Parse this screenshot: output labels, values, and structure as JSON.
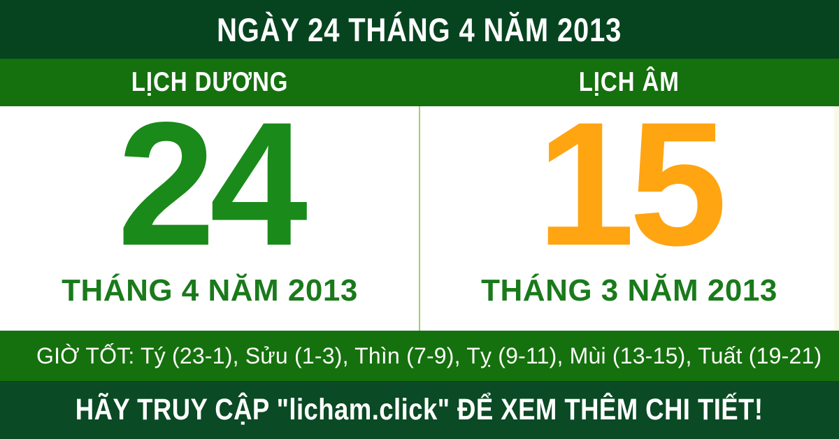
{
  "colors": {
    "header_bg": "#06441f",
    "bar_bg": "#15700e",
    "footer_bg": "#0a4a24",
    "solar_number": "#1a8a1a",
    "lunar_number": "#ffa512",
    "month_label": "#1a7a1b",
    "divider": "#a4cf62"
  },
  "header": {
    "title": "NGÀY 24 THÁNG 4 NĂM 2013"
  },
  "calendar": {
    "solar": {
      "label": "LỊCH DƯƠNG",
      "day": "24",
      "month_year": "THÁNG 4 NĂM 2013"
    },
    "lunar": {
      "label": "LỊCH ÂM",
      "day": "15",
      "month_year": "THÁNG 3 NĂM 2013"
    }
  },
  "good_hours": {
    "text": "GIỜ TỐT: Tý (23-1), Sửu (1-3), Thìn (7-9), Tỵ (9-11), Mùi (13-15), Tuất (19-21)"
  },
  "footer": {
    "text": "HÃY TRUY CẬP \"licham.click\" ĐỂ XEM THÊM CHI TIẾT!"
  }
}
